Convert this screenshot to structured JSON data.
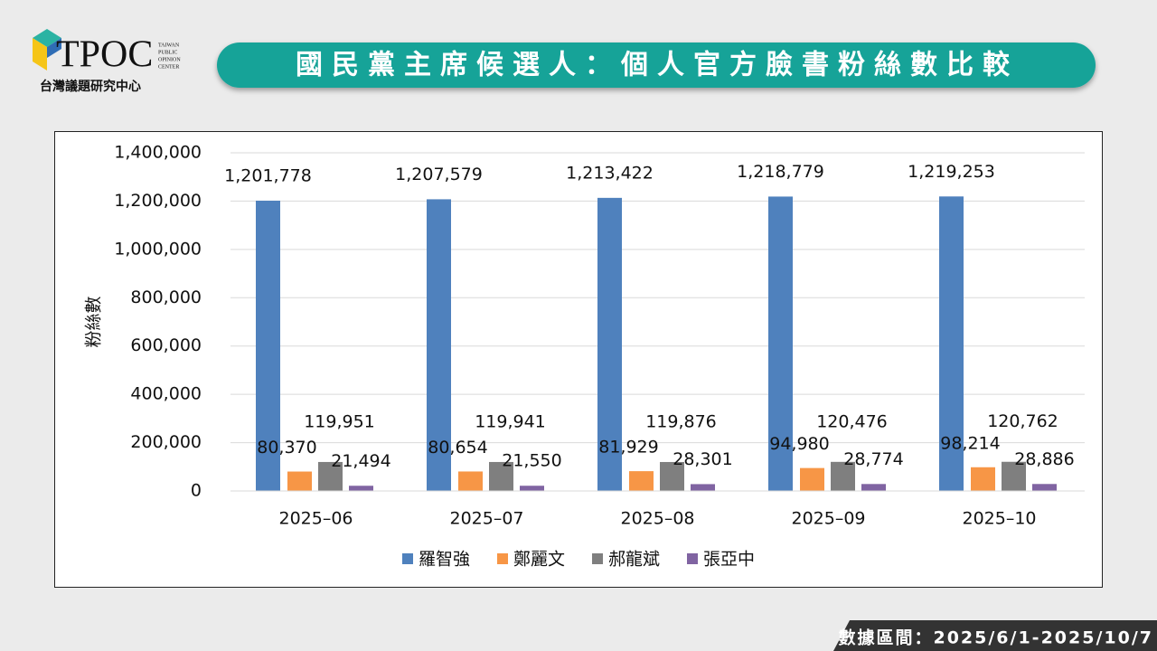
{
  "header": {
    "logo": "TPOC",
    "logo_subtitle": "台灣議題研究中心",
    "logo_small": [
      "TAIWAN",
      "PUBLIC",
      "OPINION",
      "CENTER"
    ],
    "title": "國民黨主席候選人：個人官方臉書粉絲數比較"
  },
  "footer": "數據區間：2025/6/1-2025/10/7",
  "chart_data": {
    "type": "bar",
    "y_label": "粉絲數",
    "categories": [
      "2025–06",
      "2025–07",
      "2025–08",
      "2025–09",
      "2025–10"
    ],
    "series": [
      {
        "name": "羅智強",
        "color": "#4f81bd",
        "values": [
          1201778,
          1207579,
          1213422,
          1218779,
          1219253
        ],
        "value_labels": [
          "1,201,778",
          "1,207,579",
          "1,213,422",
          "1,218,779",
          "1,219,253"
        ]
      },
      {
        "name": "鄭麗文",
        "color": "#f79646",
        "values": [
          80370,
          80654,
          81929,
          94980,
          98214
        ],
        "value_labels": [
          "80,370",
          "80,654",
          "81,929",
          "94,980",
          "98,214"
        ]
      },
      {
        "name": "郝龍斌",
        "color": "#7f7f7f",
        "values": [
          119951,
          119941,
          119876,
          120476,
          120762
        ],
        "value_labels": [
          "119,951",
          "119,941",
          "119,876",
          "120,476",
          "120,762"
        ]
      },
      {
        "name": "張亞中",
        "color": "#8064a2",
        "values": [
          21494,
          21550,
          28301,
          28774,
          28886
        ],
        "value_labels": [
          "21,494",
          "21,550",
          "28,301",
          "28,774",
          "28,886"
        ]
      }
    ],
    "ylim": [
      0,
      1400000
    ],
    "yticks": [
      0,
      {
        "value": 200000,
        "label": "200,000"
      },
      {
        "value": 400000,
        "label": "400,000"
      },
      {
        "value": 600000,
        "label": "600,000"
      },
      {
        "value": 800000,
        "label": "800,000"
      },
      {
        "value": 1000000,
        "label": "1,000,000"
      },
      {
        "value": 1200000,
        "label": "1,200,000"
      },
      {
        "value": 1400000,
        "label": "1,400,000"
      }
    ],
    "grid": true,
    "legend": "bottom"
  }
}
